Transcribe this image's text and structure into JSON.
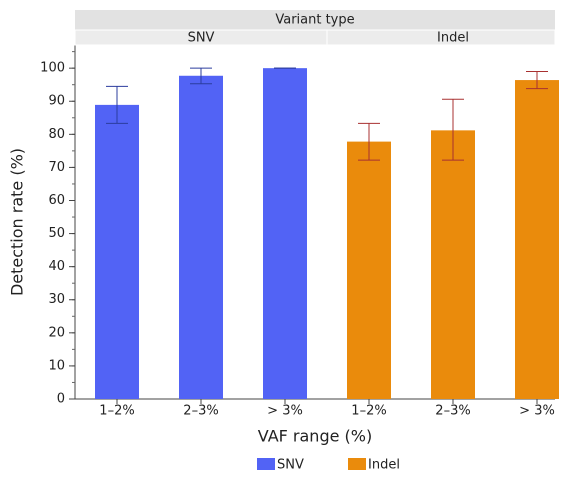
{
  "chart_data": {
    "type": "bar",
    "strip_title": "Variant type",
    "x_label": "VAF range (%)",
    "y_label": "Detection rate (%)",
    "categories": [
      "1–2%",
      "2–3%",
      "> 3%"
    ],
    "series": [
      {
        "name": "SNV",
        "color": "#5263f5",
        "error_color": "#2b3c9e",
        "values": [
          88.9,
          97.7,
          100
        ],
        "ci_lower": [
          83.3,
          95.3,
          100
        ],
        "ci_upper": [
          94.5,
          100,
          100
        ]
      },
      {
        "name": "Indel",
        "color": "#ea8b0c",
        "error_color": "#a83030",
        "values": [
          77.8,
          81.2,
          96.4
        ],
        "ci_lower": [
          72.2,
          72.2,
          93.8
        ],
        "ci_upper": [
          83.3,
          90.6,
          99
        ]
      }
    ],
    "ylim": [
      0,
      107
    ],
    "yticks": [
      0,
      10,
      20,
      30,
      40,
      50,
      60,
      70,
      80,
      90,
      100
    ],
    "minor_step": 5
  }
}
